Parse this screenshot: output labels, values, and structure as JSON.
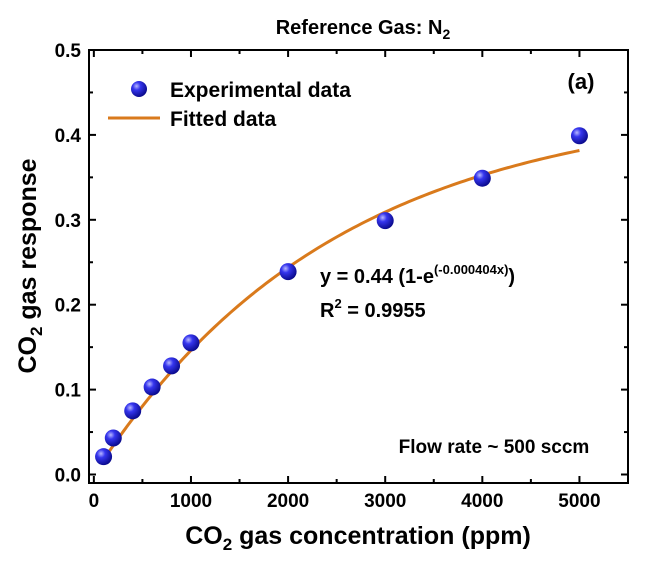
{
  "chart_data": {
    "type": "scatter",
    "title": "Reference Gas: N",
    "title_sub": "2",
    "panel_label": "(a)",
    "xlabel": {
      "pre": "CO",
      "sub": "2",
      "post": " gas concentration (ppm)"
    },
    "ylabel": {
      "pre": "CO",
      "sub": "2",
      "post": " gas response"
    },
    "xlim": [
      -50,
      5500
    ],
    "ylim": [
      -0.01,
      0.5
    ],
    "xticks": [
      0,
      1000,
      2000,
      3000,
      4000,
      5000
    ],
    "yticks": [
      0.0,
      0.1,
      0.2,
      0.3,
      0.4,
      0.5
    ],
    "xtick_labels": [
      "0",
      "1000",
      "2000",
      "3000",
      "4000",
      "5000"
    ],
    "ytick_labels": [
      "0.0",
      "0.1",
      "0.2",
      "0.3",
      "0.4",
      "0.5"
    ],
    "grid": false,
    "legend_position": "top-left",
    "series": [
      {
        "name": "Experimental data",
        "kind": "scatter",
        "color": "#1c1cd6",
        "x": [
          100,
          200,
          400,
          600,
          800,
          1000,
          2000,
          3000,
          4000,
          5000
        ],
        "y": [
          0.021,
          0.043,
          0.075,
          0.103,
          0.128,
          0.155,
          0.239,
          0.299,
          0.349,
          0.399
        ]
      },
      {
        "name": "Fitted data",
        "kind": "line",
        "color": "#d97a1c",
        "function": {
          "amplitude": 0.44,
          "rate": 0.000404
        },
        "x_range": [
          100,
          5000
        ]
      }
    ],
    "annotations": {
      "equation": {
        "pre": "y = 0.44 (1-e",
        "sup": "(-0.000404x)",
        "post": ")"
      },
      "r_squared": {
        "pre": "R",
        "sup": "2",
        "post": " = 0.9955"
      },
      "flow_rate": "Flow rate ~ 500 sccm"
    }
  }
}
